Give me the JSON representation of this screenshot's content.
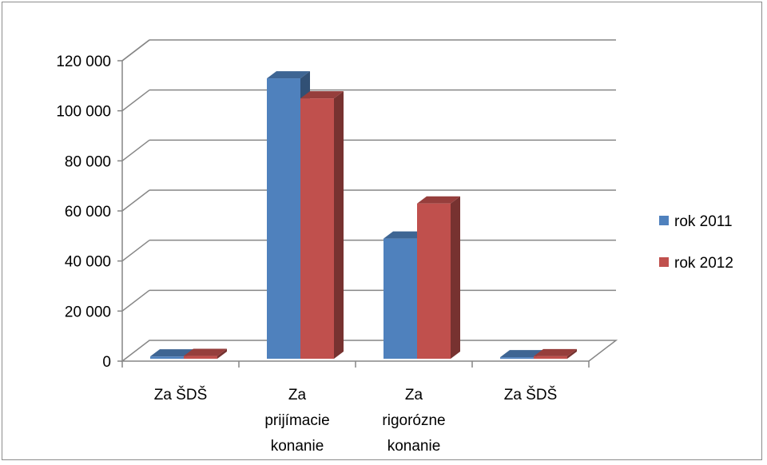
{
  "chart_data": {
    "type": "bar",
    "categories": [
      [
        "Za ŠDŠ"
      ],
      [
        "Za",
        "prijímacie",
        "konanie"
      ],
      [
        "Za",
        "rigorózne",
        "konanie"
      ],
      [
        "Za ŠDŠ"
      ]
    ],
    "series": [
      {
        "name": "rok 2011",
        "color": "#4f81bd",
        "values": [
          900,
          112000,
          48000,
          600
        ]
      },
      {
        "name": "rok 2012",
        "color": "#c0504d",
        "values": [
          1100,
          104000,
          62000,
          1000
        ]
      }
    ],
    "yticks": [
      "0",
      "20 000",
      "40 000",
      "60 000",
      "80 000",
      "100 000",
      "120 000"
    ],
    "ylim": [
      0,
      120000
    ],
    "grid": true,
    "legend_position": "right",
    "style": "3d-clustered-column"
  }
}
